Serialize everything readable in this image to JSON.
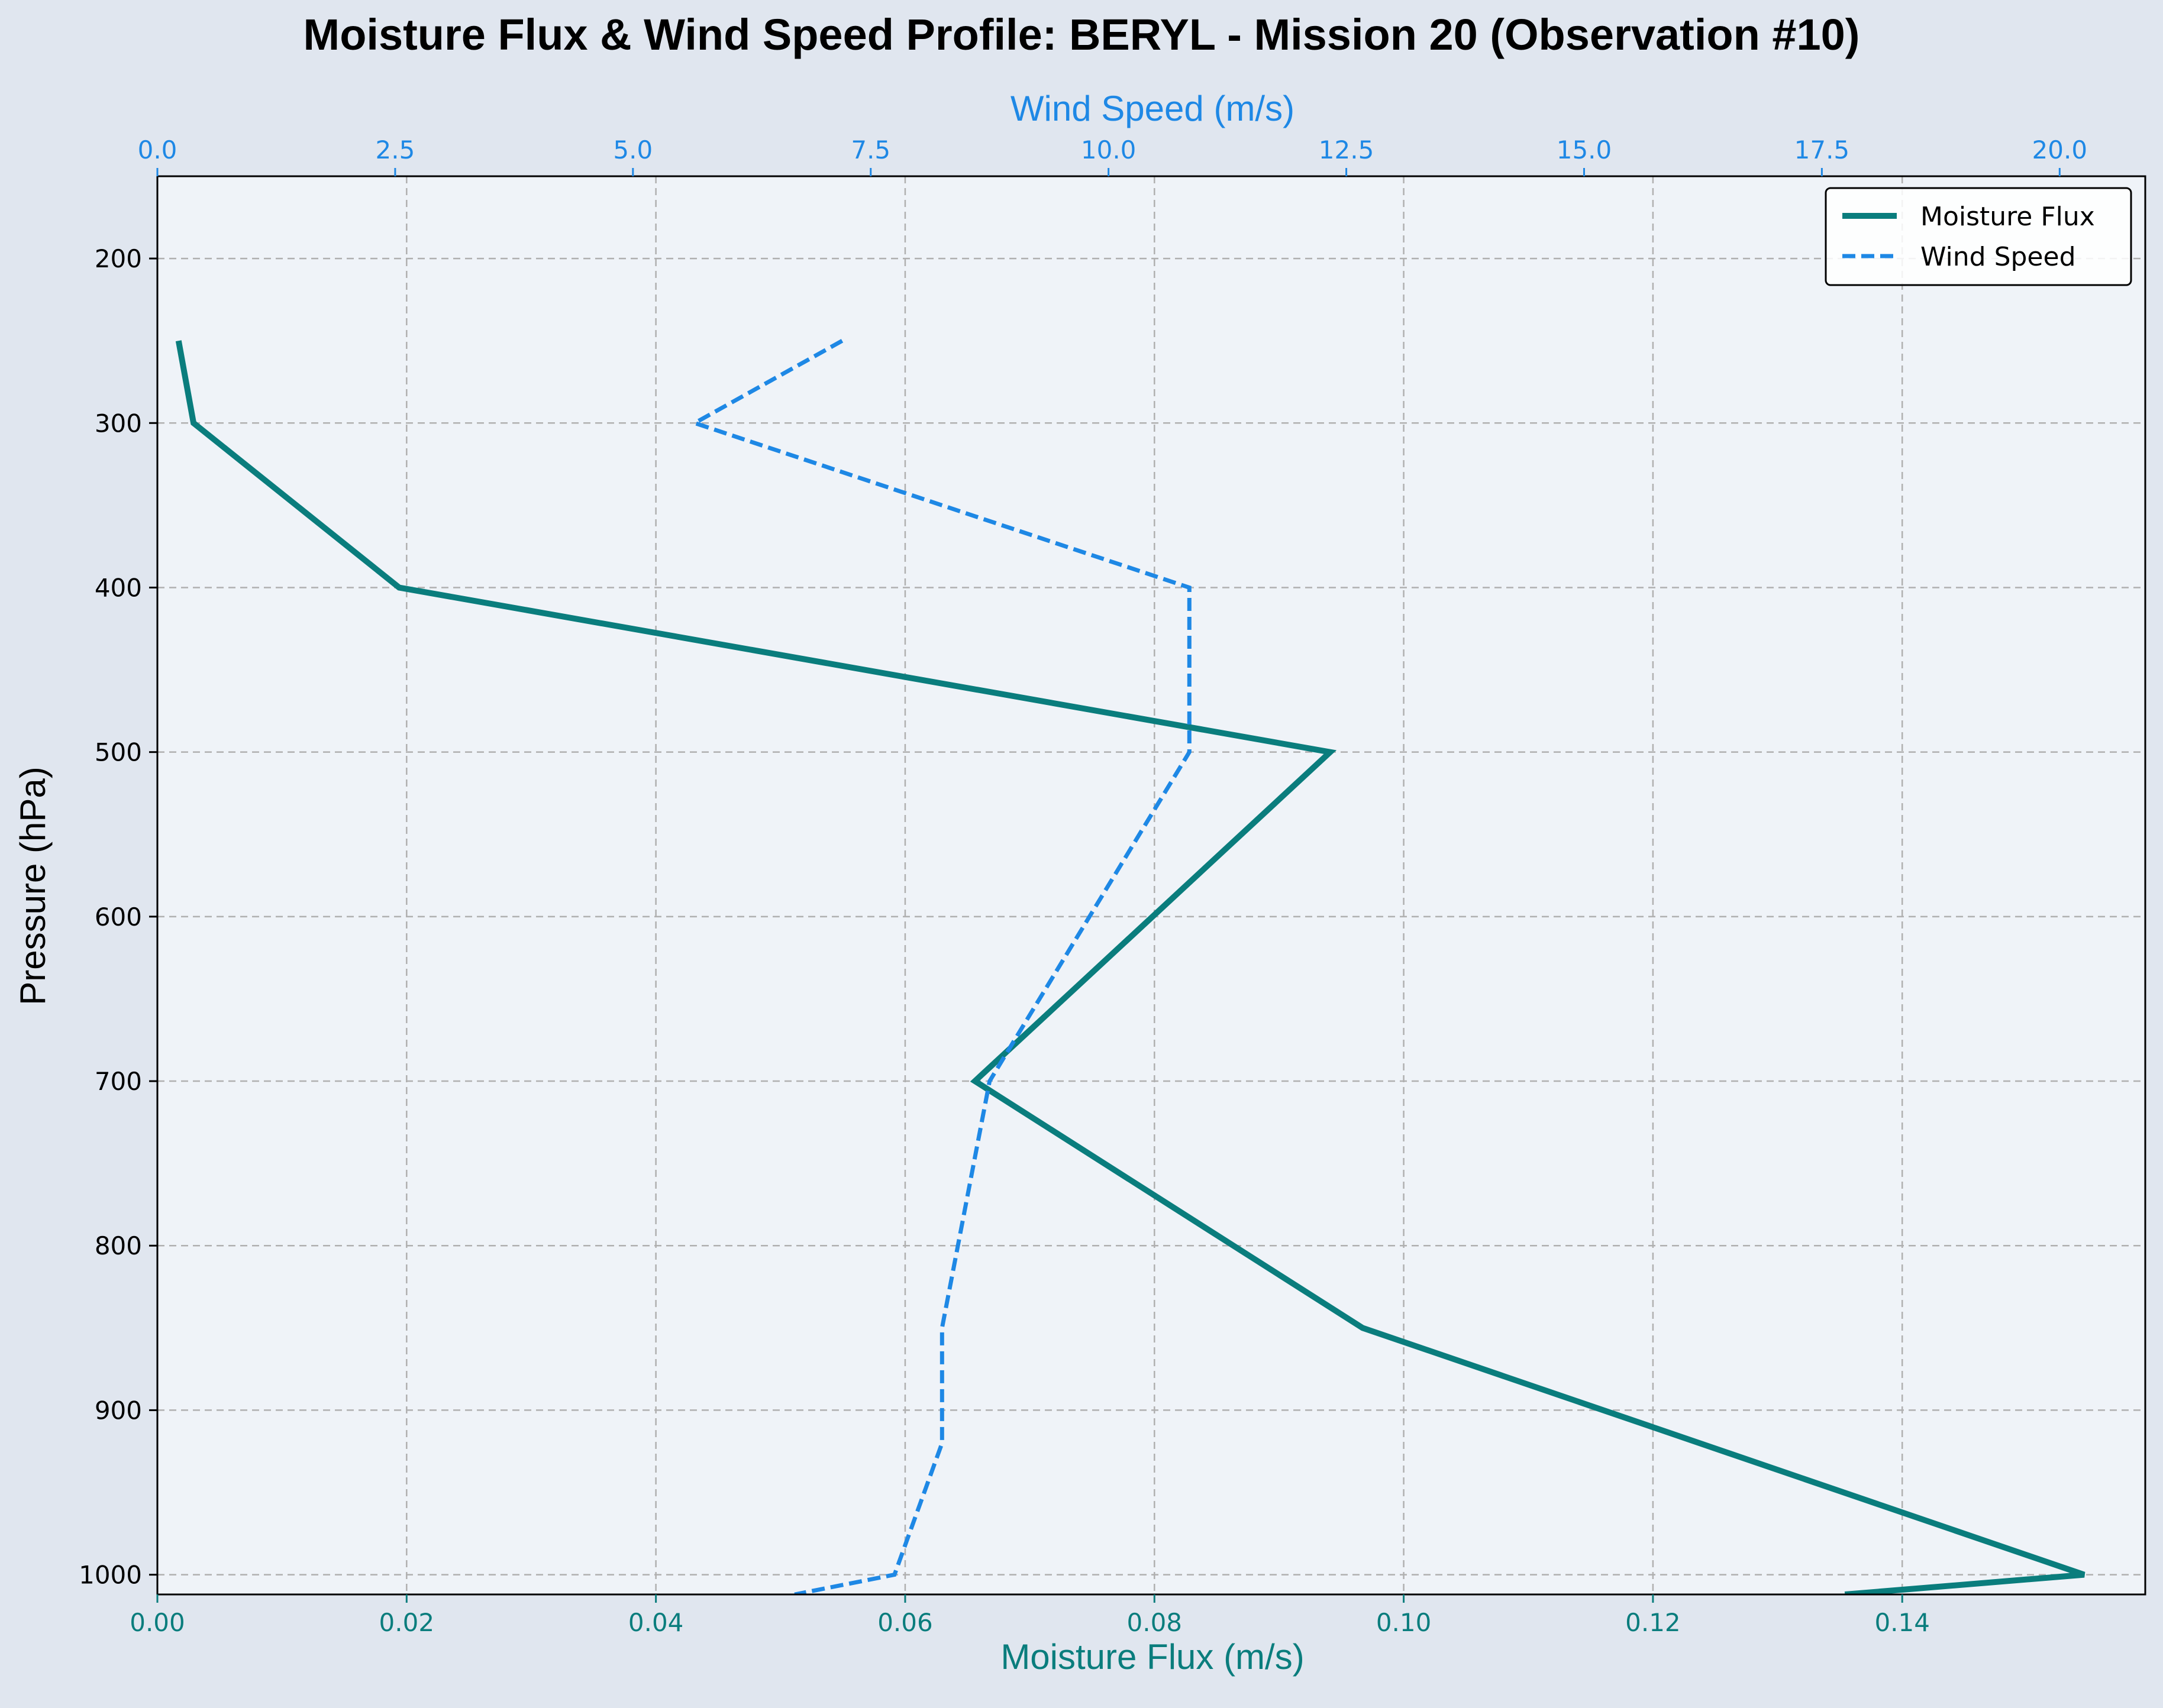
{
  "chart_data": {
    "type": "line",
    "title": "Moisture Flux & Wind Speed Profile: BERYL - Mission 20 (Observation #10)",
    "ylabel": "Pressure (hPa)",
    "xlabel": "Moisture Flux (m/s)",
    "x2label": "Wind Speed (m/s)",
    "ylim": [
      1012,
      150
    ],
    "xlim": [
      0,
      0.1595
    ],
    "x2lim": [
      0,
      20.9
    ],
    "y_inverted": true,
    "grid": true,
    "legend_position": "upper right",
    "yticks": [
      200,
      300,
      400,
      500,
      600,
      700,
      800,
      900,
      1000
    ],
    "ytick_labels": [
      "200",
      "300",
      "400",
      "500",
      "600",
      "700",
      "800",
      "900",
      "1000"
    ],
    "xticks": [
      0,
      0.02,
      0.04,
      0.06,
      0.08,
      0.1,
      0.12,
      0.14
    ],
    "xtick_labels": [
      "0.00",
      "0.02",
      "0.04",
      "0.06",
      "0.08",
      "0.10",
      "0.12",
      "0.14"
    ],
    "x2ticks": [
      0,
      2.5,
      5,
      7.5,
      10,
      12.5,
      15,
      17.5,
      20
    ],
    "x2tick_labels": [
      "0.0",
      "2.5",
      "5.0",
      "7.5",
      "10.0",
      "12.5",
      "15.0",
      "17.5",
      "20.0"
    ],
    "series": [
      {
        "name": "Moisture Flux",
        "axis": "bottom",
        "color": "#0a7d7d",
        "style": "solid",
        "points": [
          {
            "pressure": 250,
            "value": 0.0017
          },
          {
            "pressure": 300,
            "value": 0.0029
          },
          {
            "pressure": 400,
            "value": 0.0194
          },
          {
            "pressure": 500,
            "value": 0.0941
          },
          {
            "pressure": 700,
            "value": 0.0656
          },
          {
            "pressure": 850,
            "value": 0.0967
          },
          {
            "pressure": 1000,
            "value": 0.1546
          },
          {
            "pressure": 1012,
            "value": 0.1354
          }
        ]
      },
      {
        "name": "Wind Speed",
        "axis": "top",
        "color": "#1e88e5",
        "style": "dashed",
        "points": [
          {
            "pressure": 250,
            "value": 7.2
          },
          {
            "pressure": 300,
            "value": 5.65
          },
          {
            "pressure": 400,
            "value": 10.85
          },
          {
            "pressure": 500,
            "value": 10.85
          },
          {
            "pressure": 700,
            "value": 8.75
          },
          {
            "pressure": 850,
            "value": 8.25
          },
          {
            "pressure": 920,
            "value": 8.25
          },
          {
            "pressure": 1000,
            "value": 7.75
          },
          {
            "pressure": 1012,
            "value": 6.7
          }
        ]
      }
    ]
  },
  "colors": {
    "figure_background": "#e0e6ef",
    "plot_background": "#eff3f8",
    "grid": "#b0b0b0",
    "bottom_axis": "#0a7d7d",
    "top_axis": "#1e88e5",
    "left_axis": "#000000"
  }
}
